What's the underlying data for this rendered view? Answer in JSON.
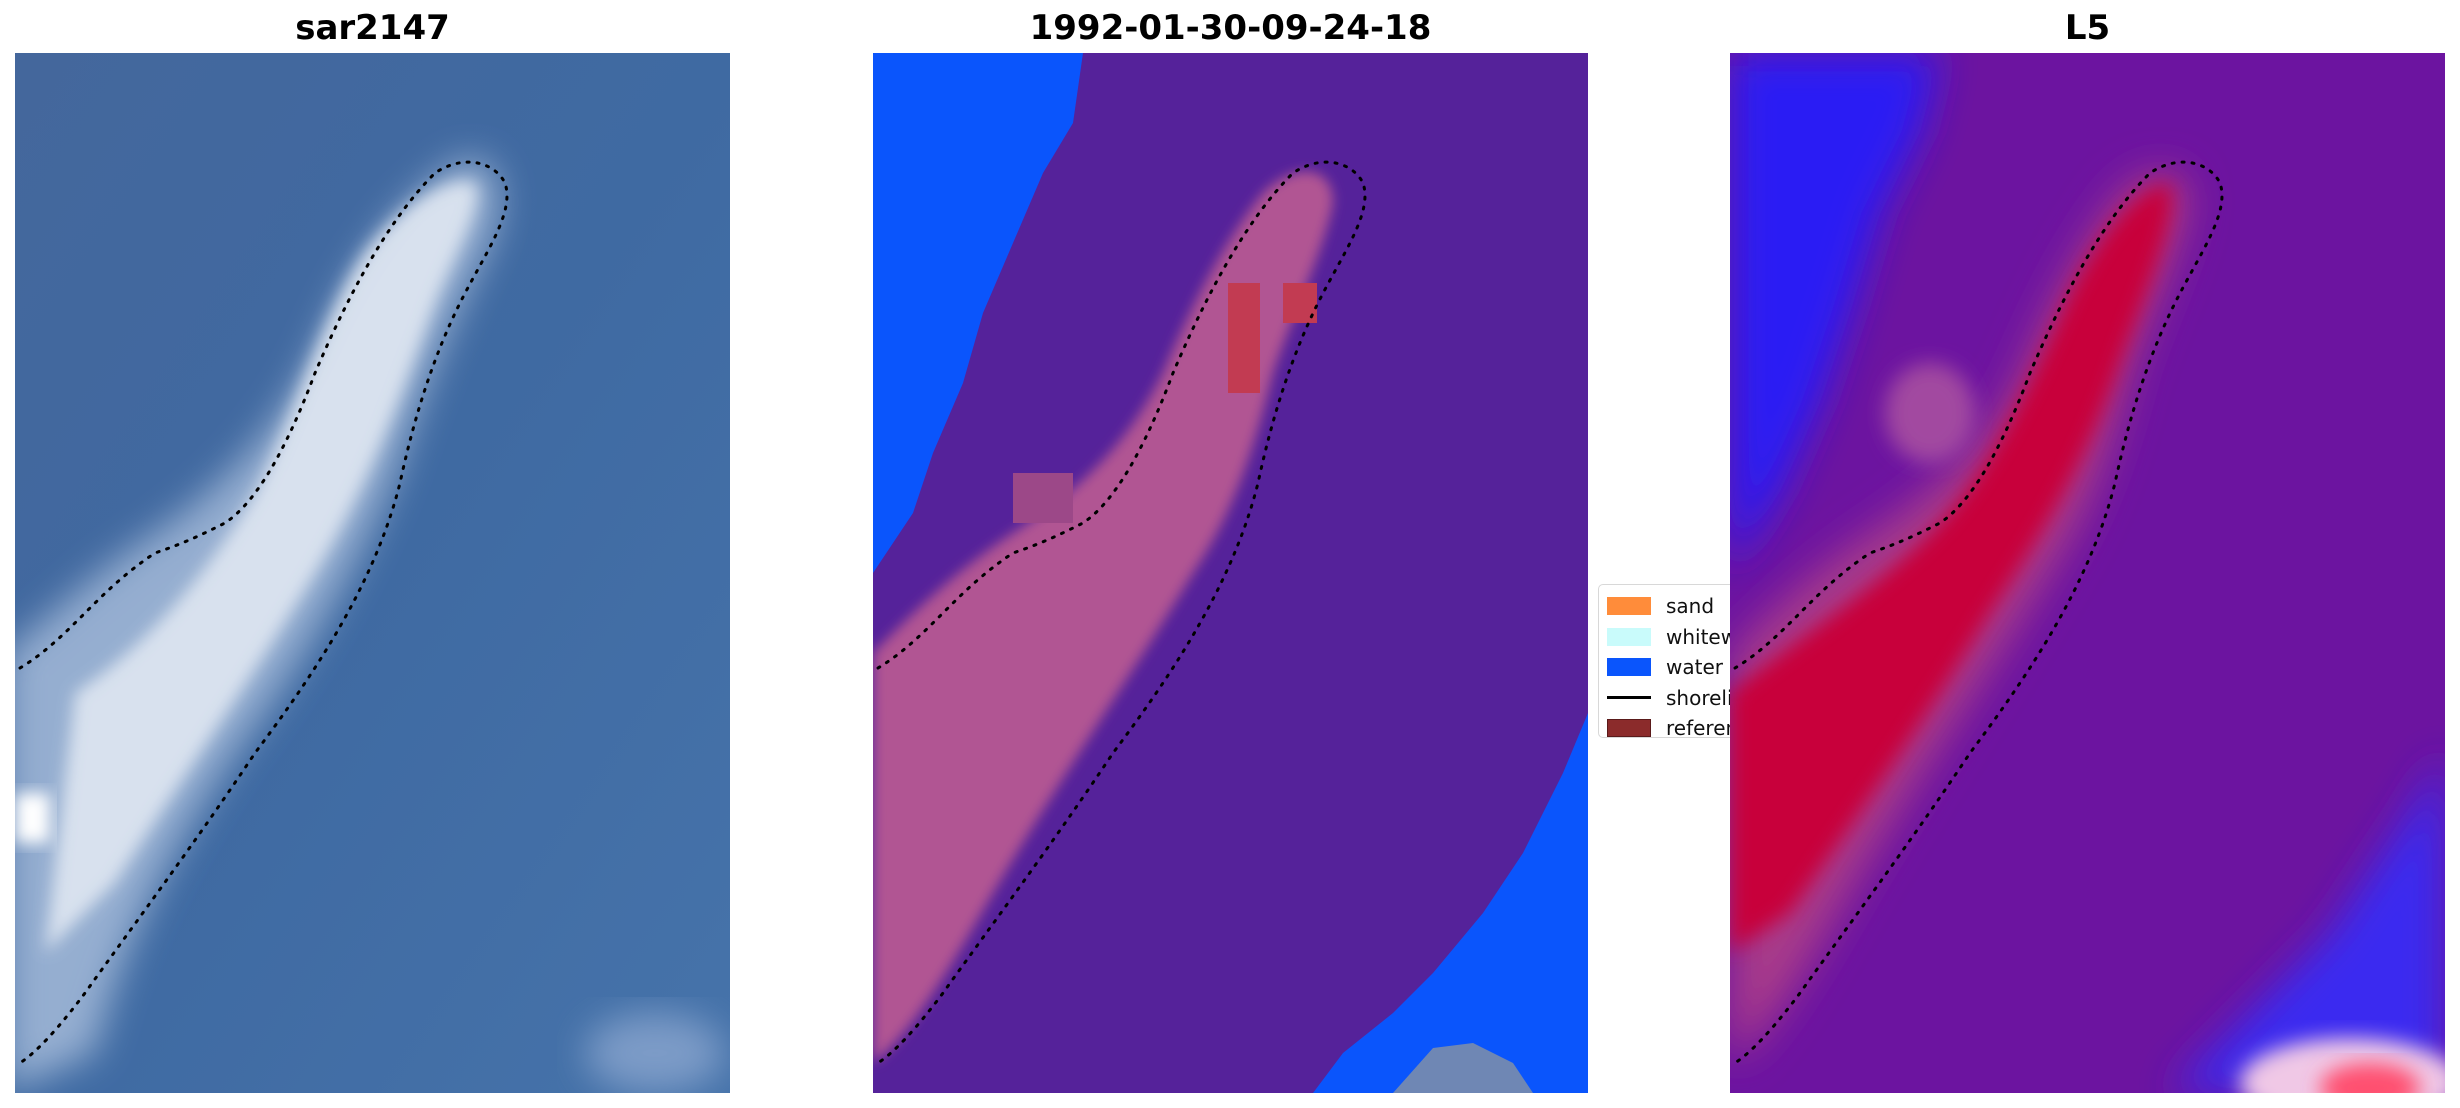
{
  "panels": [
    {
      "title": "sar2147"
    },
    {
      "title": "1992-01-30-09-24-18"
    },
    {
      "title": "L5"
    }
  ],
  "legend": {
    "items": [
      {
        "label": "sand",
        "color": "#ff8c3a",
        "kind": "patch"
      },
      {
        "label": "whitewater",
        "color": "#c9fbfb",
        "kind": "patch"
      },
      {
        "label": "water",
        "color": "#0a55fc",
        "kind": "patch"
      },
      {
        "label": "shoreline",
        "color": "#000000",
        "kind": "line"
      },
      {
        "label": "reference",
        "color": "#8b2b2b",
        "kind": "patch"
      }
    ]
  },
  "colors": {
    "rgb_water": "#42699e",
    "rgb_sand": "#e6ecf4",
    "class_water": "#0a55fc",
    "class_other": "#55229a",
    "class_sand": "#b15593",
    "class_ref": "#c23b52",
    "index_high": "#c8063a",
    "index_mid": "#6c14a0",
    "index_low": "#2a1cf4"
  }
}
